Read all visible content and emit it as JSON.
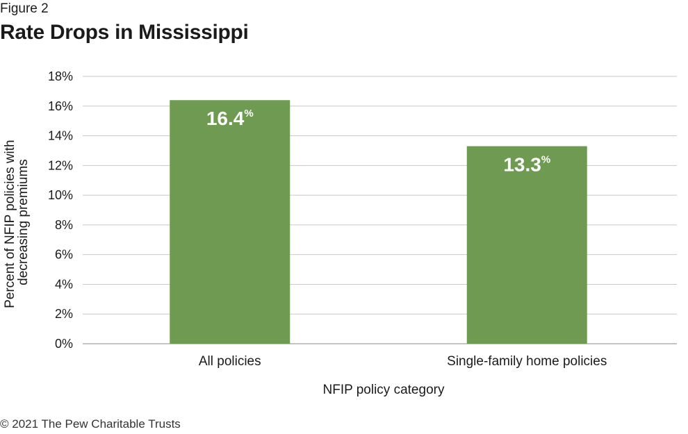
{
  "figure_label": "Figure 2",
  "title": "Rate Drops in Mississippi",
  "footer": "© 2021 The Pew Charitable Trusts",
  "colors": {
    "bar": "#6e9b51",
    "grid": "#c8c8c8",
    "axis": "#8a8a8a"
  },
  "chart_data": {
    "type": "bar",
    "categories": [
      "All policies",
      "Single-family home policies"
    ],
    "values": [
      16.4,
      13.3
    ],
    "data_labels": [
      "16.4",
      "13.3"
    ],
    "data_label_suffix": "%",
    "title": "Rate Drops in Mississippi",
    "xlabel": "NFIP policy category",
    "ylabel": [
      "Percent of NFIP policies with",
      "decreasing premiums"
    ],
    "ylim": [
      0,
      18
    ],
    "yticks": [
      0,
      2,
      4,
      6,
      8,
      10,
      12,
      14,
      16,
      18
    ],
    "ytick_labels": [
      "0%",
      "2%",
      "4%",
      "6%",
      "8%",
      "10%",
      "12%",
      "14%",
      "16%",
      "18%"
    ],
    "grid": true,
    "legend": "none"
  }
}
